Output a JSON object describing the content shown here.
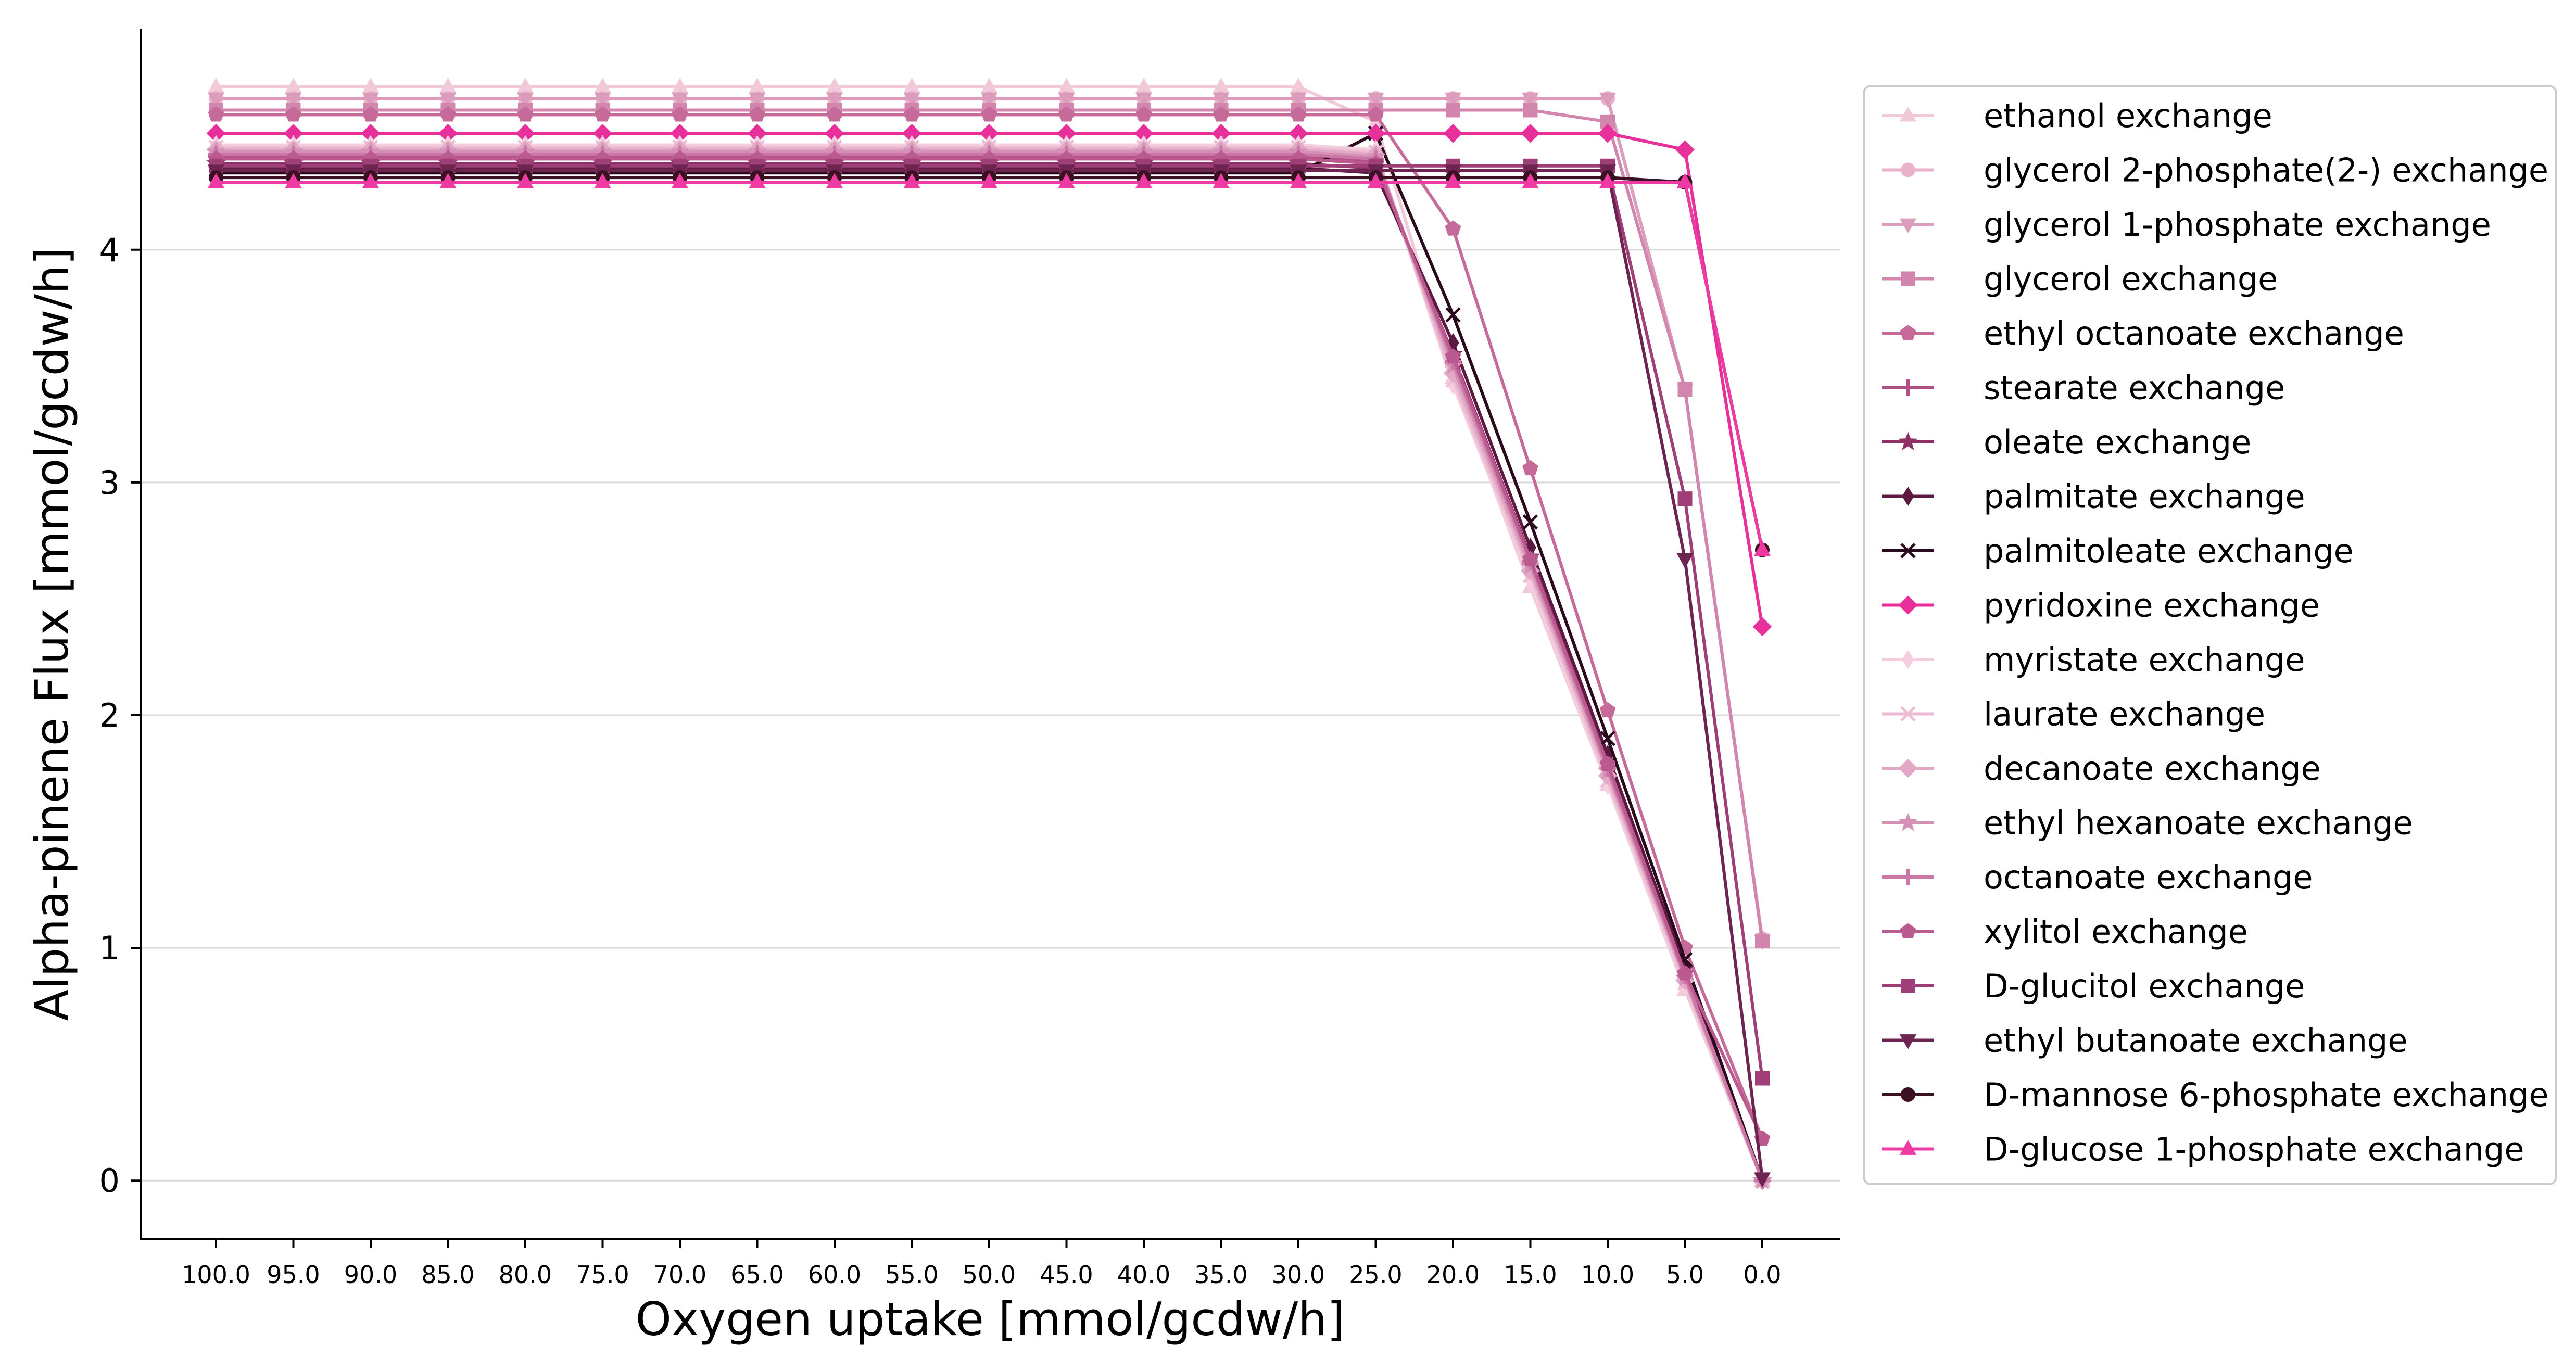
{
  "chart_data": {
    "type": "line",
    "title": "",
    "xlabel": "Oxygen uptake [mmol/gcdw/h]",
    "ylabel": "Alpha-pinene Flux [mmol/gcdw/h]",
    "x": [
      "100.0",
      "95.0",
      "90.0",
      "85.0",
      "80.0",
      "75.0",
      "70.0",
      "65.0",
      "60.0",
      "55.0",
      "50.0",
      "45.0",
      "40.0",
      "35.0",
      "30.0",
      "25.0",
      "20.0",
      "15.0",
      "10.0",
      "5.0",
      "0.0"
    ],
    "yticks": [
      "0",
      "1",
      "2",
      "3",
      "4"
    ],
    "ylim": [
      -0.25,
      4.95
    ],
    "grid": "horizontal",
    "legend": "right",
    "series": [
      {
        "name": "ethanol exchange",
        "color": "#f2c9d9",
        "marker": "triangle-up",
        "values": [
          4.7,
          4.7,
          4.7,
          4.7,
          4.7,
          4.7,
          4.7,
          4.7,
          4.7,
          4.7,
          4.7,
          4.7,
          4.7,
          4.7,
          4.7,
          4.55,
          3.45,
          2.55,
          1.7,
          0.82,
          0.0
        ]
      },
      {
        "name": "glycerol 2-phosphate(2-) exchange",
        "color": "#e8b3ca",
        "marker": "circle",
        "values": [
          4.65,
          4.65,
          4.65,
          4.65,
          4.65,
          4.65,
          4.65,
          4.65,
          4.65,
          4.65,
          4.65,
          4.65,
          4.65,
          4.65,
          4.65,
          4.65,
          4.65,
          4.65,
          4.65,
          3.4,
          1.04
        ]
      },
      {
        "name": "glycerol 1-phosphate exchange",
        "color": "#dc9dbd",
        "marker": "triangle-down",
        "values": [
          4.65,
          4.65,
          4.65,
          4.65,
          4.65,
          4.65,
          4.65,
          4.65,
          4.65,
          4.65,
          4.65,
          4.65,
          4.65,
          4.65,
          4.65,
          4.65,
          4.65,
          4.65,
          4.65,
          3.4,
          1.03
        ]
      },
      {
        "name": "glycerol exchange",
        "color": "#d286ad",
        "marker": "square",
        "values": [
          4.6,
          4.6,
          4.6,
          4.6,
          4.6,
          4.6,
          4.6,
          4.6,
          4.6,
          4.6,
          4.6,
          4.6,
          4.6,
          4.6,
          4.6,
          4.6,
          4.6,
          4.6,
          4.55,
          3.4,
          1.03
        ]
      },
      {
        "name": "ethyl octanoate exchange",
        "color": "#c66a9a",
        "marker": "pentagon",
        "values": [
          4.58,
          4.58,
          4.58,
          4.58,
          4.58,
          4.58,
          4.58,
          4.58,
          4.58,
          4.58,
          4.58,
          4.58,
          4.58,
          4.58,
          4.58,
          4.58,
          4.09,
          3.06,
          2.02,
          1.0,
          0.18
        ]
      },
      {
        "name": "stearate exchange",
        "color": "#b44f86",
        "marker": "plus",
        "values": [
          4.4,
          4.4,
          4.4,
          4.4,
          4.4,
          4.4,
          4.4,
          4.4,
          4.4,
          4.4,
          4.4,
          4.4,
          4.4,
          4.4,
          4.4,
          4.38,
          3.5,
          2.65,
          1.78,
          0.9,
          0.0
        ]
      },
      {
        "name": "oleate exchange",
        "color": "#8e2f68",
        "marker": "star",
        "values": [
          4.37,
          4.37,
          4.37,
          4.37,
          4.37,
          4.37,
          4.37,
          4.37,
          4.37,
          4.37,
          4.37,
          4.37,
          4.37,
          4.37,
          4.37,
          4.35,
          3.55,
          2.68,
          1.8,
          0.91,
          0.0
        ]
      },
      {
        "name": "palmitate exchange",
        "color": "#5e1942",
        "marker": "thin-diamond",
        "values": [
          4.35,
          4.35,
          4.35,
          4.35,
          4.35,
          4.35,
          4.35,
          4.35,
          4.35,
          4.35,
          4.35,
          4.35,
          4.35,
          4.35,
          4.35,
          4.33,
          3.6,
          2.72,
          1.83,
          0.92,
          0.0
        ]
      },
      {
        "name": "palmitoleate exchange",
        "color": "#2a0a1c",
        "marker": "x",
        "values": [
          4.33,
          4.33,
          4.33,
          4.33,
          4.33,
          4.33,
          4.33,
          4.33,
          4.33,
          4.33,
          4.33,
          4.33,
          4.33,
          4.33,
          4.33,
          4.5,
          3.72,
          2.83,
          1.9,
          0.95,
          0.0
        ]
      },
      {
        "name": "pyridoxine exchange",
        "color": "#e8309a",
        "marker": "diamond",
        "values": [
          4.5,
          4.5,
          4.5,
          4.5,
          4.5,
          4.5,
          4.5,
          4.5,
          4.5,
          4.5,
          4.5,
          4.5,
          4.5,
          4.5,
          4.5,
          4.5,
          4.5,
          4.5,
          4.5,
          4.43,
          2.38
        ]
      },
      {
        "name": "myristate exchange",
        "color": "#f5cfdf",
        "marker": "thin-diamond",
        "values": [
          4.45,
          4.45,
          4.45,
          4.45,
          4.45,
          4.45,
          4.45,
          4.45,
          4.45,
          4.45,
          4.45,
          4.45,
          4.45,
          4.45,
          4.45,
          4.43,
          3.42,
          2.58,
          1.7,
          0.84,
          0.0
        ]
      },
      {
        "name": "laurate exchange",
        "color": "#edbdd3",
        "marker": "x",
        "values": [
          4.44,
          4.44,
          4.44,
          4.44,
          4.44,
          4.44,
          4.44,
          4.44,
          4.44,
          4.44,
          4.44,
          4.44,
          4.44,
          4.44,
          4.44,
          4.42,
          3.44,
          2.6,
          1.72,
          0.85,
          0.0
        ]
      },
      {
        "name": "decanoate exchange",
        "color": "#e2a9c7",
        "marker": "diamond",
        "values": [
          4.43,
          4.43,
          4.43,
          4.43,
          4.43,
          4.43,
          4.43,
          4.43,
          4.43,
          4.43,
          4.43,
          4.43,
          4.43,
          4.43,
          4.43,
          4.41,
          3.47,
          2.62,
          1.74,
          0.86,
          0.0
        ]
      },
      {
        "name": "ethyl hexanoate exchange",
        "color": "#d590b6",
        "marker": "star",
        "values": [
          4.42,
          4.42,
          4.42,
          4.42,
          4.42,
          4.42,
          4.42,
          4.42,
          4.42,
          4.42,
          4.42,
          4.42,
          4.42,
          4.42,
          4.42,
          4.4,
          3.5,
          2.64,
          1.76,
          0.87,
          0.0
        ]
      },
      {
        "name": "octanoate exchange",
        "color": "#ca77a5",
        "marker": "plus",
        "values": [
          4.41,
          4.41,
          4.41,
          4.41,
          4.41,
          4.41,
          4.41,
          4.41,
          4.41,
          4.41,
          4.41,
          4.41,
          4.41,
          4.41,
          4.41,
          4.39,
          3.52,
          2.66,
          1.77,
          0.88,
          0.0
        ]
      },
      {
        "name": "xylitol exchange",
        "color": "#bb5a8f",
        "marker": "pentagon",
        "values": [
          4.39,
          4.39,
          4.39,
          4.39,
          4.39,
          4.39,
          4.39,
          4.39,
          4.39,
          4.39,
          4.39,
          4.39,
          4.39,
          4.39,
          4.39,
          4.37,
          3.54,
          2.67,
          1.79,
          0.89,
          0.18
        ]
      },
      {
        "name": "D-glucitol exchange",
        "color": "#9f3f78",
        "marker": "square",
        "values": [
          4.36,
          4.36,
          4.36,
          4.36,
          4.36,
          4.36,
          4.36,
          4.36,
          4.36,
          4.36,
          4.36,
          4.36,
          4.36,
          4.36,
          4.36,
          4.36,
          4.36,
          4.36,
          4.36,
          2.93,
          0.44
        ]
      },
      {
        "name": "ethyl butanoate exchange",
        "color": "#6e2450",
        "marker": "triangle-down",
        "values": [
          4.34,
          4.34,
          4.34,
          4.34,
          4.34,
          4.34,
          4.34,
          4.34,
          4.34,
          4.34,
          4.34,
          4.34,
          4.34,
          4.34,
          4.34,
          4.34,
          4.34,
          4.34,
          4.34,
          2.67,
          0.01
        ]
      },
      {
        "name": "D-mannose 6-phosphate exchange",
        "color": "#3a1022",
        "marker": "circle",
        "values": [
          4.31,
          4.31,
          4.31,
          4.31,
          4.31,
          4.31,
          4.31,
          4.31,
          4.31,
          4.31,
          4.31,
          4.31,
          4.31,
          4.31,
          4.31,
          4.31,
          4.31,
          4.31,
          4.31,
          4.29,
          2.71
        ]
      },
      {
        "name": "D-glucose 1-phosphate exchange",
        "color": "#ef3aa3",
        "marker": "triangle-up",
        "values": [
          4.29,
          4.29,
          4.29,
          4.29,
          4.29,
          4.29,
          4.29,
          4.29,
          4.29,
          4.29,
          4.29,
          4.29,
          4.29,
          4.29,
          4.29,
          4.29,
          4.29,
          4.29,
          4.29,
          4.29,
          2.71
        ]
      }
    ]
  }
}
